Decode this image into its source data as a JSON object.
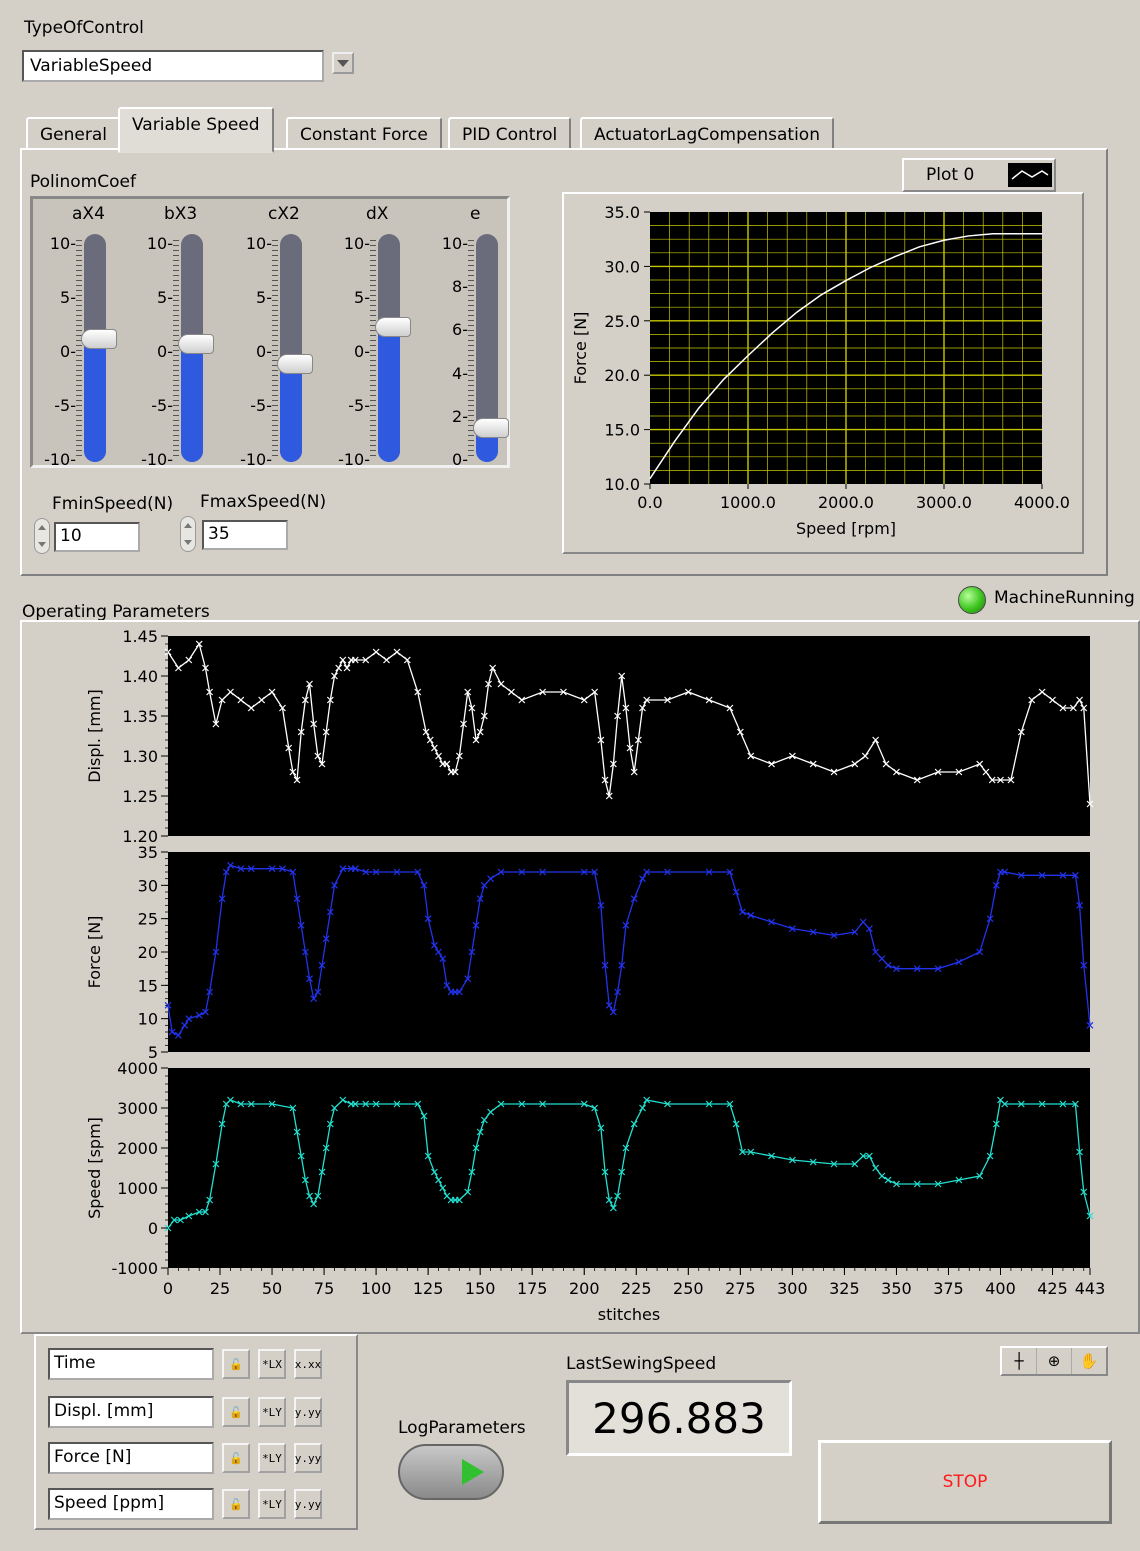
{
  "type_of_control": {
    "label": "TypeOfControl",
    "value": "VariableSpeed"
  },
  "tabs": [
    "General",
    "Variable Speed",
    "Constant Force",
    "PID Control",
    "ActuatorLagCompensation"
  ],
  "active_tab": 1,
  "polinom": {
    "label": "PolinomCoef",
    "sliders": [
      {
        "name": "aX4",
        "value": 0.3,
        "min": -10,
        "max": 10,
        "ticks": [
          "10-",
          "5-",
          "0-",
          "-5-",
          "-10-"
        ]
      },
      {
        "name": "bX3",
        "value": -0.2,
        "min": -10,
        "max": 10,
        "ticks": [
          "10-",
          "5-",
          "0-",
          "-5-",
          "-10-"
        ]
      },
      {
        "name": "cX2",
        "value": -2.0,
        "min": -10,
        "max": 10,
        "ticks": [
          "10-",
          "5-",
          "0-",
          "-5-",
          "-10-"
        ]
      },
      {
        "name": "dX",
        "value": 1.4,
        "min": -10,
        "max": 10,
        "ticks": [
          "10-",
          "5-",
          "0-",
          "-5-",
          "-10-"
        ]
      },
      {
        "name": "e",
        "value": 1.0,
        "min": 0,
        "max": 10,
        "ticks": [
          "10-",
          "8-",
          "6-",
          "4-",
          "2-",
          "0-"
        ]
      }
    ]
  },
  "fmin": {
    "label": "FminSpeed(N)",
    "value": "10"
  },
  "fmax": {
    "label": "FmaxSpeed(N)",
    "value": "35"
  },
  "plot_legend": {
    "label": "Plot 0"
  },
  "machine_running": {
    "label": "MachineRunning",
    "color": "#3cc41e"
  },
  "operating_label": "Operating Parameters",
  "cursors": [
    "Time",
    "Displ. [mm]",
    "Force [N]",
    "Speed [ppm]"
  ],
  "cursor_btn_labels": {
    "lock": "🔓",
    "x_axis": "*LX",
    "y_axis": "*LY",
    "fmt_x": "x.xx",
    "fmt_y": "y.yy"
  },
  "log_label": "LogParameters",
  "last_speed": {
    "label": "LastSewingSpeed",
    "value": "296.883"
  },
  "stop_label": "STOP",
  "colors": {
    "displ": "#ffffff",
    "force": "#2233ee",
    "speed": "#22e0d0",
    "grid": "#c8c800",
    "plot_bg": "#000000"
  },
  "chart_data": [
    {
      "type": "line",
      "xlabel": "Speed [rpm]",
      "ylabel": "Force [N]",
      "xlim": [
        0,
        4000
      ],
      "ylim": [
        10,
        35
      ],
      "xticks": [
        "0.0",
        "1000.0",
        "2000.0",
        "3000.0",
        "4000.0"
      ],
      "yticks": [
        "35.0",
        "30.0",
        "25.0",
        "20.0",
        "15.0",
        "10.0"
      ],
      "grid": true,
      "series": [
        {
          "x": [
            0,
            250,
            500,
            750,
            1000,
            1250,
            1500,
            1750,
            2000,
            2250,
            2500,
            2750,
            3000,
            3250,
            3500,
            3750,
            4000
          ],
          "y": [
            10.5,
            13.9,
            17.0,
            19.6,
            21.8,
            23.9,
            25.8,
            27.4,
            28.7,
            29.9,
            30.9,
            31.8,
            32.4,
            32.8,
            33.0,
            33.0,
            33.0
          ]
        }
      ]
    },
    {
      "type": "line",
      "ylabel": "Displ. [mm]",
      "xlim": [
        0,
        443
      ],
      "ylim": [
        1.2,
        1.45
      ],
      "yticks": [
        "1.45",
        "1.40",
        "1.35",
        "1.30",
        "1.25",
        "1.20"
      ],
      "series": [
        {
          "x": [
            0,
            5,
            10,
            15,
            18,
            20,
            23,
            26,
            30,
            35,
            40,
            45,
            50,
            55,
            58,
            60,
            62,
            64,
            66,
            68,
            70,
            72,
            74,
            76,
            78,
            80,
            82,
            84,
            86,
            88,
            90,
            95,
            100,
            105,
            110,
            115,
            120,
            124,
            126,
            128,
            130,
            132,
            134,
            136,
            138,
            140,
            142,
            144,
            146,
            148,
            150,
            152,
            154,
            156,
            160,
            165,
            170,
            180,
            190,
            200,
            205,
            208,
            210,
            212,
            214,
            216,
            218,
            220,
            222,
            224,
            226,
            228,
            230,
            240,
            250,
            260,
            270,
            275,
            280,
            290,
            300,
            310,
            320,
            330,
            335,
            340,
            345,
            350,
            360,
            370,
            380,
            390,
            393,
            396,
            400,
            405,
            410,
            415,
            420,
            425,
            430,
            435,
            438,
            440,
            443
          ],
          "y": [
            1.43,
            1.41,
            1.42,
            1.44,
            1.41,
            1.38,
            1.34,
            1.37,
            1.38,
            1.37,
            1.36,
            1.37,
            1.38,
            1.36,
            1.31,
            1.28,
            1.27,
            1.33,
            1.37,
            1.39,
            1.34,
            1.3,
            1.29,
            1.33,
            1.37,
            1.4,
            1.41,
            1.42,
            1.41,
            1.42,
            1.42,
            1.42,
            1.43,
            1.42,
            1.43,
            1.42,
            1.38,
            1.33,
            1.32,
            1.31,
            1.3,
            1.29,
            1.29,
            1.28,
            1.28,
            1.3,
            1.34,
            1.38,
            1.36,
            1.32,
            1.33,
            1.35,
            1.39,
            1.41,
            1.39,
            1.38,
            1.37,
            1.38,
            1.38,
            1.37,
            1.38,
            1.32,
            1.27,
            1.25,
            1.29,
            1.35,
            1.4,
            1.36,
            1.31,
            1.28,
            1.32,
            1.36,
            1.37,
            1.37,
            1.38,
            1.37,
            1.36,
            1.33,
            1.3,
            1.29,
            1.3,
            1.29,
            1.28,
            1.29,
            1.3,
            1.32,
            1.29,
            1.28,
            1.27,
            1.28,
            1.28,
            1.29,
            1.28,
            1.27,
            1.27,
            1.27,
            1.33,
            1.37,
            1.38,
            1.37,
            1.36,
            1.36,
            1.37,
            1.36,
            1.24
          ]
        }
      ]
    },
    {
      "type": "line",
      "ylabel": "Force [N]",
      "xlim": [
        0,
        443
      ],
      "ylim": [
        5,
        35
      ],
      "yticks": [
        "35",
        "30",
        "25",
        "20",
        "15",
        "10",
        "5"
      ],
      "series": [
        {
          "x": [
            0,
            2,
            5,
            8,
            10,
            15,
            18,
            20,
            23,
            26,
            28,
            30,
            35,
            40,
            50,
            55,
            60,
            62,
            64,
            66,
            68,
            70,
            72,
            74,
            76,
            78,
            80,
            84,
            88,
            90,
            95,
            100,
            110,
            120,
            123,
            125,
            128,
            130,
            132,
            134,
            136,
            138,
            140,
            144,
            146,
            148,
            150,
            152,
            155,
            160,
            170,
            180,
            200,
            205,
            208,
            210,
            212,
            214,
            216,
            218,
            220,
            224,
            228,
            230,
            240,
            260,
            270,
            273,
            276,
            280,
            290,
            300,
            310,
            320,
            330,
            334,
            337,
            340,
            343,
            346,
            350,
            360,
            370,
            380,
            390,
            395,
            398,
            400,
            402,
            410,
            420,
            430,
            436,
            438,
            440,
            443
          ],
          "y": [
            12,
            8,
            7.5,
            9,
            10,
            10.5,
            11,
            14,
            20,
            28,
            32,
            33,
            32.5,
            32.5,
            32.5,
            32.5,
            32,
            28,
            24,
            20,
            16,
            13,
            14,
            18,
            22,
            26,
            30,
            32.5,
            32.5,
            32.5,
            32,
            32,
            32,
            32,
            30,
            25,
            21,
            20,
            19,
            15,
            14,
            14,
            14,
            16,
            20,
            24,
            28,
            30,
            31,
            32,
            32,
            32,
            32,
            32,
            27,
            18,
            12,
            11,
            14,
            18,
            24,
            28,
            31,
            32,
            32,
            32,
            32,
            29,
            26,
            25.5,
            24.5,
            23.5,
            23,
            22.5,
            23,
            24.5,
            23.5,
            20,
            19,
            18,
            17.5,
            17.5,
            17.5,
            18.5,
            20,
            25,
            30,
            32,
            32,
            31.5,
            31.5,
            31.5,
            31.5,
            27,
            18,
            9
          ]
        }
      ]
    },
    {
      "type": "line",
      "ylabel": "Speed [spm]",
      "xlabel": "stitches",
      "xlim": [
        0,
        443
      ],
      "ylim": [
        -1000,
        4000
      ],
      "yticks": [
        "4000",
        "3000",
        "2000",
        "1000",
        "0",
        "-1000"
      ],
      "xticks": [
        "0",
        "25",
        "50",
        "75",
        "100",
        "125",
        "150",
        "175",
        "200",
        "225",
        "250",
        "275",
        "300",
        "325",
        "350",
        "375",
        "400",
        "425",
        "443"
      ],
      "series": [
        {
          "x": [
            0,
            3,
            6,
            10,
            15,
            18,
            20,
            23,
            26,
            28,
            30,
            35,
            40,
            50,
            60,
            62,
            64,
            66,
            68,
            70,
            72,
            74,
            76,
            78,
            80,
            84,
            88,
            90,
            95,
            100,
            110,
            120,
            123,
            125,
            128,
            130,
            132,
            134,
            136,
            138,
            140,
            144,
            146,
            148,
            150,
            152,
            155,
            160,
            170,
            180,
            200,
            205,
            208,
            210,
            212,
            214,
            216,
            218,
            220,
            224,
            228,
            230,
            240,
            260,
            270,
            273,
            276,
            280,
            290,
            300,
            310,
            320,
            330,
            334,
            337,
            340,
            343,
            346,
            350,
            360,
            370,
            380,
            390,
            395,
            398,
            400,
            402,
            410,
            420,
            430,
            436,
            438,
            440,
            443
          ],
          "y": [
            0,
            200,
            200,
            300,
            400,
            400,
            700,
            1600,
            2600,
            3100,
            3200,
            3100,
            3100,
            3100,
            3000,
            2400,
            1800,
            1200,
            800,
            600,
            800,
            1400,
            2000,
            2600,
            3000,
            3200,
            3100,
            3100,
            3100,
            3100,
            3100,
            3100,
            2800,
            1800,
            1400,
            1200,
            1000,
            800,
            700,
            700,
            700,
            900,
            1400,
            2000,
            2400,
            2700,
            2900,
            3100,
            3100,
            3100,
            3100,
            3000,
            2500,
            1400,
            700,
            500,
            800,
            1400,
            2000,
            2600,
            3000,
            3200,
            3100,
            3100,
            3100,
            2600,
            1900,
            1900,
            1800,
            1700,
            1650,
            1600,
            1600,
            1800,
            1800,
            1500,
            1300,
            1200,
            1100,
            1100,
            1100,
            1200,
            1300,
            1800,
            2600,
            3200,
            3100,
            3100,
            3100,
            3100,
            3100,
            1900,
            900,
            300
          ]
        }
      ]
    }
  ]
}
